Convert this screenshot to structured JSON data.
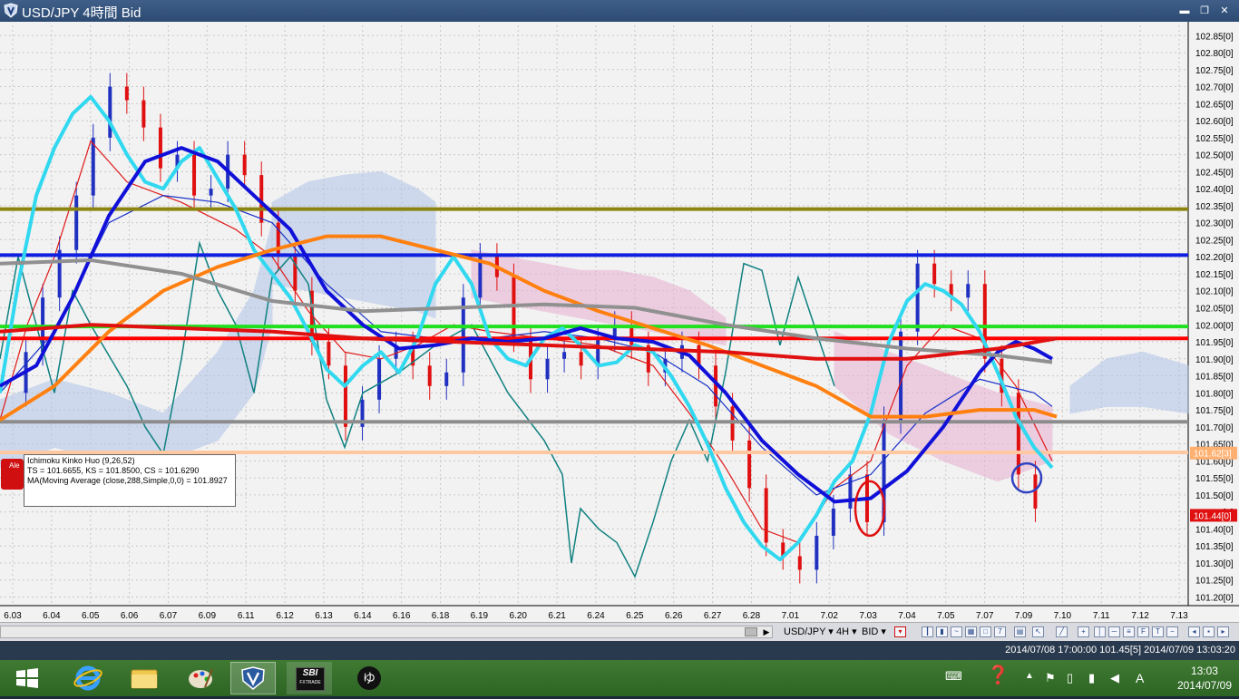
{
  "window": {
    "title": "USD/JPY 4時間 Bid",
    "minimize": "▬",
    "restore": "❐",
    "close": "✕"
  },
  "colors": {
    "up_candle": "#2030c0",
    "down_candle": "#e01010",
    "tenkan": "#e01818",
    "kijun": "#1830c8",
    "chikou": "#108080",
    "ma_fast": "#30d8f0",
    "ma_mid": "#1010d8",
    "ma_orange": "#ff8010",
    "ma_gray": "#909090",
    "kumo_bull": "#b0c4e8",
    "kumo_bear": "#e8b0d0",
    "line_olive": "#8c8410",
    "line_blue": "#1020e0",
    "line_green": "#20e020",
    "line_red": "#ff0000",
    "line_gray": "#8c8c8c",
    "line_peach": "#ffc8a0"
  },
  "chart_data": {
    "type": "line",
    "symbol": "USD/JPY",
    "timeframe": "4時間",
    "ylim": [
      101.18,
      102.88
    ],
    "y_ticks": [
      "102.85[0]",
      "102.80[0]",
      "102.75[0]",
      "102.70[0]",
      "102.65[0]",
      "102.60[0]",
      "102.55[0]",
      "102.50[0]",
      "102.45[0]",
      "102.40[0]",
      "102.35[0]",
      "102.30[0]",
      "102.25[0]",
      "102.20[0]",
      "102.15[0]",
      "102.10[0]",
      "102.05[0]",
      "102.00[0]",
      "101.95[0]",
      "101.90[0]",
      "101.85[0]",
      "101.80[0]",
      "101.75[0]",
      "101.70[0]",
      "101.65[0]",
      "101.60[0]",
      "101.55[0]",
      "101.50[0]",
      "101.45[0]",
      "101.40[0]",
      "101.35[0]",
      "101.30[0]",
      "101.25[0]",
      "101.20[0]"
    ],
    "x_ticks": [
      "6.03",
      "6.04",
      "6.05",
      "6.06",
      "6.07",
      "6.09",
      "6.11",
      "6.12",
      "6.13",
      "6.14",
      "6.16",
      "6.18",
      "6.19",
      "6.20",
      "6.21",
      "6.24",
      "6.25",
      "6.26",
      "6.27",
      "6.28",
      "7.01",
      "7.02",
      "7.03",
      "7.04",
      "7.05",
      "7.07",
      "7.09",
      "7.10",
      "7.11",
      "7.12",
      "7.13"
    ],
    "horizontal_lines": [
      {
        "price": 102.34,
        "color": "#8c8410"
      },
      {
        "price": 102.205,
        "color": "#1020e0"
      },
      {
        "price": 101.995,
        "color": "#20e020"
      },
      {
        "price": 101.96,
        "color": "#ff0000"
      },
      {
        "price": 101.715,
        "color": "#8c8c8c"
      },
      {
        "price": 101.625,
        "color": "#ffc8a0"
      }
    ],
    "price_labels": [
      {
        "text": "101.62[3]",
        "price": 101.623,
        "bg": "#ffb070"
      },
      {
        "text": "101.44[0]",
        "price": 101.44,
        "bg": "#e01010"
      }
    ],
    "series": [
      {
        "name": "MA fast",
        "color": "#30d8f0",
        "x": [
          0,
          20,
          40,
          60,
          80,
          100,
          120,
          140,
          160,
          180,
          200,
          220,
          240,
          260,
          280,
          300,
          320,
          340,
          360,
          380,
          400,
          420,
          440,
          460,
          480,
          500,
          520,
          540,
          560,
          580,
          600,
          620,
          640,
          660,
          680,
          700,
          720,
          740,
          760,
          780,
          800,
          820,
          840,
          860,
          880,
          900,
          920,
          940,
          960,
          980,
          1000,
          1020,
          1040,
          1060,
          1080,
          1100,
          1120,
          1140,
          1160
        ],
        "y": [
          101.8,
          102.12,
          102.38,
          102.52,
          102.62,
          102.67,
          102.6,
          102.5,
          102.42,
          102.4,
          102.48,
          102.52,
          102.43,
          102.34,
          102.22,
          102.15,
          102.08,
          101.98,
          101.87,
          101.82,
          101.88,
          101.92,
          101.86,
          101.96,
          102.12,
          102.2,
          102.12,
          101.96,
          101.9,
          101.88,
          101.96,
          101.99,
          101.94,
          101.88,
          101.89,
          101.94,
          101.92,
          101.85,
          101.76,
          101.65,
          101.52,
          101.42,
          101.35,
          101.31,
          101.36,
          101.44,
          101.54,
          101.6,
          101.74,
          101.95,
          102.07,
          102.12,
          102.1,
          102.06,
          101.98,
          101.86,
          101.73,
          101.64,
          101.58
        ]
      },
      {
        "name": "MA mid",
        "color": "#1010d8",
        "x": [
          0,
          40,
          80,
          120,
          160,
          200,
          240,
          280,
          320,
          360,
          400,
          440,
          480,
          520,
          560,
          600,
          640,
          680,
          720,
          760,
          800,
          840,
          880,
          920,
          960,
          1000,
          1040,
          1080,
          1100,
          1120,
          1140,
          1160
        ],
        "y": [
          101.82,
          101.88,
          102.08,
          102.32,
          102.48,
          102.52,
          102.48,
          102.38,
          102.28,
          102.1,
          102.0,
          101.93,
          101.94,
          101.96,
          101.95,
          101.96,
          101.99,
          101.96,
          101.95,
          101.91,
          101.8,
          101.66,
          101.56,
          101.48,
          101.49,
          101.57,
          101.7,
          101.86,
          101.92,
          101.95,
          101.93,
          101.9
        ]
      },
      {
        "name": "MA orange",
        "color": "#ff8010",
        "x": [
          0,
          60,
          120,
          180,
          240,
          300,
          360,
          420,
          480,
          540,
          600,
          660,
          720,
          780,
          840,
          900,
          960,
          1020,
          1080,
          1140,
          1165
        ],
        "y": [
          101.72,
          101.82,
          101.98,
          102.1,
          102.17,
          102.22,
          102.26,
          102.26,
          102.22,
          102.18,
          102.1,
          102.04,
          101.99,
          101.94,
          101.88,
          101.82,
          101.73,
          101.73,
          101.75,
          101.75,
          101.73
        ]
      },
      {
        "name": "MA gray",
        "color": "#909090",
        "x": [
          0,
          100,
          200,
          300,
          400,
          500,
          600,
          700,
          800,
          900,
          1000,
          1100,
          1160
        ],
        "y": [
          102.18,
          102.19,
          102.15,
          102.07,
          102.04,
          102.05,
          102.06,
          102.05,
          102.0,
          101.96,
          101.93,
          101.91,
          101.89
        ]
      },
      {
        "name": "MA red",
        "color": "#e01010",
        "x": [
          0,
          100,
          200,
          300,
          400,
          500,
          600,
          700,
          800,
          900,
          1000,
          1100,
          1165
        ],
        "y": [
          101.98,
          102.0,
          101.99,
          101.98,
          101.96,
          101.95,
          101.94,
          101.93,
          101.92,
          101.9,
          101.9,
          101.93,
          101.96
        ]
      }
    ],
    "annotations": [
      {
        "shape": "ellipse",
        "color": "#e01010",
        "x": 959,
        "price": 101.46
      },
      {
        "shape": "circle",
        "color": "#3040c0",
        "x": 1132,
        "price": 101.55
      }
    ]
  },
  "info_box": {
    "line1": "Ichimoku Kinko Huo (9,26,52)",
    "line2": "TS = 101.6655, KS = 101.8500, CS = 101.6290",
    "line3": "MA(Moving Average (close,288,Simple,0,0) = 101.8927",
    "alert": "Ale"
  },
  "toolbar": {
    "symbol": "USD/JPY ▾",
    "timeframe": "4H ▾",
    "side": "BID ▾"
  },
  "status": {
    "text": "2014/07/08 17:00:00  101.45[5]  2014/07/09 13:03:20"
  },
  "taskbar": {
    "items": [
      "windows-start",
      "internet-explorer",
      "file-explorer",
      "paint",
      "fx-platform",
      "sbi-fxtrade",
      "search-app"
    ],
    "sbi_label": "SBI",
    "sbi_sub": "FXTRADE",
    "ime": "A",
    "time": "13:03",
    "date": "2014/07/09"
  }
}
